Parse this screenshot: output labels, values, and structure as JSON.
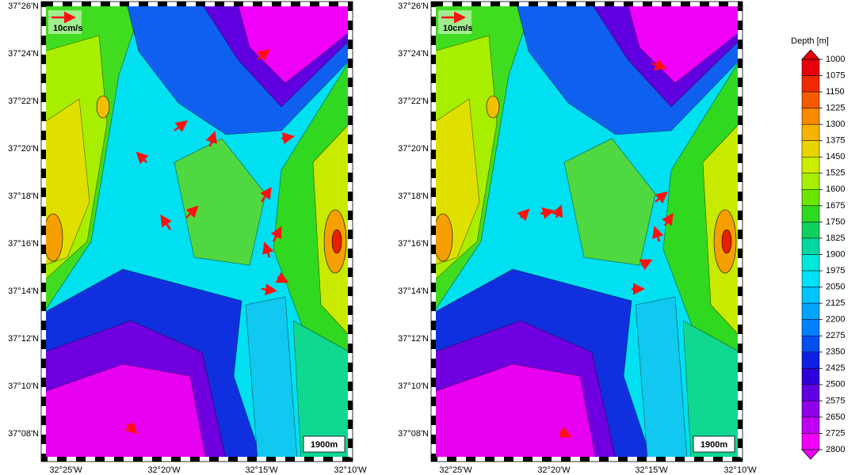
{
  "panels": [
    {
      "lat_labels": [
        "37°26'N",
        "37°24'N",
        "37°22'N",
        "37°20'N",
        "37°18'N",
        "37°16'N",
        "37°14'N",
        "37°12'N",
        "37°10'N",
        "37°08'N"
      ],
      "lon_labels": [
        "32°25'W",
        "32°20'W",
        "32°15'W",
        "32°10'W"
      ],
      "vector_scale_label": "10cm/s",
      "scale_bar_label": "1900m"
    },
    {
      "lat_labels": [
        "37°26'N",
        "37°24'N",
        "37°22'N",
        "37°20'N",
        "37°18'N",
        "37°16'N",
        "37°14'N",
        "37°12'N",
        "37°10'N",
        "37°08'N"
      ],
      "lon_labels": [
        "32°25'W",
        "32°20'W",
        "32°15'W",
        "32°10'W"
      ],
      "vector_scale_label": "10cm/s",
      "scale_bar_label": "1900m"
    }
  ],
  "colorbar": {
    "title": "Depth [m]",
    "levels": [
      1000,
      1075,
      1150,
      1225,
      1300,
      1375,
      1450,
      1525,
      1600,
      1675,
      1750,
      1825,
      1900,
      1975,
      2050,
      2125,
      2200,
      2275,
      2350,
      2425,
      2500,
      2575,
      2650,
      2725,
      2800
    ],
    "colors": [
      "#e8000a",
      "#f02a00",
      "#f55a00",
      "#f88a00",
      "#f5b300",
      "#e8d400",
      "#ccec00",
      "#a4f000",
      "#6ae600",
      "#30d820",
      "#10d060",
      "#00d8a0",
      "#00e8d8",
      "#00e0f8",
      "#00c4ff",
      "#00a4ff",
      "#0080ff",
      "#0050f0",
      "#1020e0",
      "#3000d8",
      "#6000e0",
      "#9000e8",
      "#c000f0",
      "#f000f8"
    ]
  }
}
